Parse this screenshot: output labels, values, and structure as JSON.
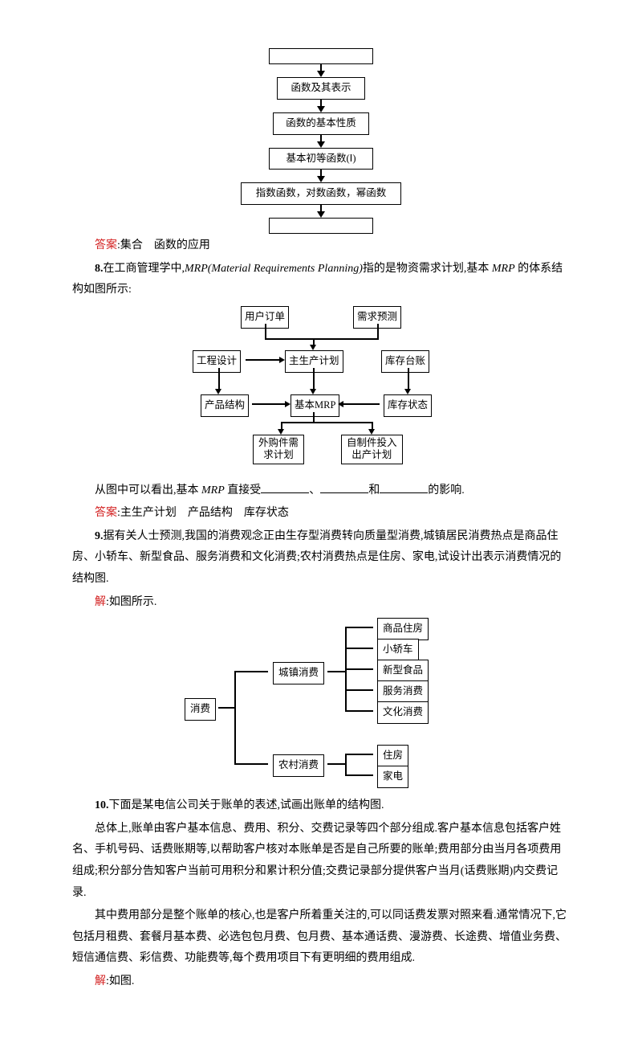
{
  "diag1": {
    "boxes": [
      "",
      "函数及其表示",
      "函数的基本性质",
      "基本初等函数(Ⅰ)",
      "指数函数，对数函数，幂函数",
      ""
    ],
    "widths": [
      130,
      110,
      120,
      130,
      200,
      130
    ]
  },
  "answer7": {
    "label": "答案",
    "text": ":集合　函数的应用"
  },
  "q8": {
    "num": "8.",
    "body1": "在工商管理学中,",
    "mrp_it": "MRP",
    "paren_it": "(Material Requirements Planning)",
    "body2": "指的是物资需求计划,基本 ",
    "mrp2": "MRP",
    "body3": " 的体系结构如图所示:"
  },
  "diag2": {
    "nodes": {
      "user_order": "用户订单",
      "demand_forecast": "需求预测",
      "eng_design": "工程设计",
      "master_plan": "主生产计划",
      "stock_ledger": "库存台账",
      "prod_struct": "产品结构",
      "mrp": "基本MRP",
      "stock_state": "库存状态",
      "purchase": "外购件需\n求计划",
      "make": "自制件投入\n出产计划"
    }
  },
  "q8tail": {
    "line": "从图中可以看出,基本 ",
    "mrp": "MRP",
    "after": " 直接受",
    "and": "和",
    "end": "的影响."
  },
  "answer8": {
    "label": "答案",
    "text": ":主生产计划　产品结构　库存状态"
  },
  "q9": {
    "num": "9.",
    "text": "据有关人士预测,我国的消费观念正由生存型消费转向质量型消费,城镇居民消费热点是商品住房、小轿车、新型食品、服务消费和文化消费;农村消费热点是住房、家电,试设计出表示消费情况的结构图."
  },
  "sol9": {
    "label": "解",
    "text": ":如图所示."
  },
  "diag3": {
    "root": "消费",
    "urban": "城镇消费",
    "rural": "农村消费",
    "urban_items": [
      "商品住房",
      "小轿车",
      "新型食品",
      "服务消费",
      "文化消费"
    ],
    "rural_items": [
      "住房",
      "家电"
    ]
  },
  "q10": {
    "num": "10.",
    "body": "下面是某电信公司关于账单的表述,试画出账单的结构图."
  },
  "p10a": "总体上,账单由客户基本信息、费用、积分、交费记录等四个部分组成.客户基本信息包括客户姓名、手机号码、话费账期等,以帮助客户核对本账单是否是自己所要的账单;费用部分由当月各项费用组成;积分部分告知客户当前可用积分和累计积分值;交费记录部分提供客户当月(话费账期)内交费记录.",
  "p10b": "其中费用部分是整个账单的核心,也是客户所着重关注的,可以同话费发票对照来看.通常情况下,它包括月租费、套餐月基本费、必选包包月费、包月费、基本通话费、漫游费、长途费、增值业务费、短信通信费、彩信费、功能费等,每个费用项目下有更明细的费用组成.",
  "sol10": {
    "label": "解",
    "text": ":如图."
  }
}
